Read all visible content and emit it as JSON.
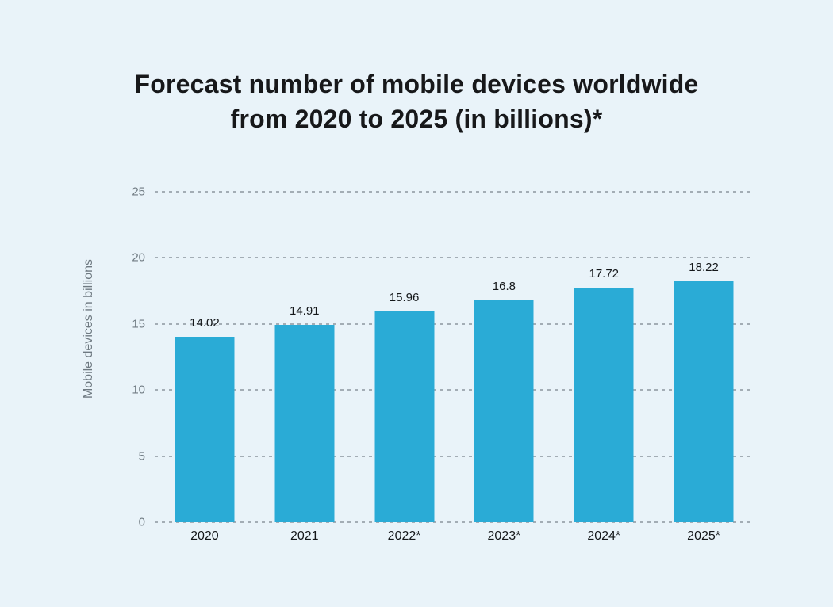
{
  "title": {
    "line1": "Forecast number of mobile devices worldwide",
    "line2": "from 2020 to 2025 (in billions)*"
  },
  "chart_data": {
    "type": "bar",
    "title": "Forecast number of mobile devices worldwide from 2020 to 2025 (in billions)*",
    "categories": [
      "2020",
      "2021",
      "2022*",
      "2023*",
      "2024*",
      "2025*"
    ],
    "values": [
      14.02,
      14.91,
      15.96,
      16.8,
      17.72,
      18.22
    ],
    "value_labels": [
      "14.02",
      "14.91",
      "15.96",
      "16.8",
      "17.72",
      "18.22"
    ],
    "xlabel": "",
    "ylabel": "Mobile devices in billions",
    "ylim": [
      0,
      25
    ],
    "yticks": [
      0,
      5,
      10,
      15,
      20,
      25
    ],
    "grid": "horizontal-dashed",
    "legend": "none",
    "colors": {
      "bar": "#2aabd6",
      "background": "#e9f3f9",
      "grid": "#a3adb5",
      "axis_text": "#6f7a82",
      "label_text": "#14171a"
    }
  }
}
